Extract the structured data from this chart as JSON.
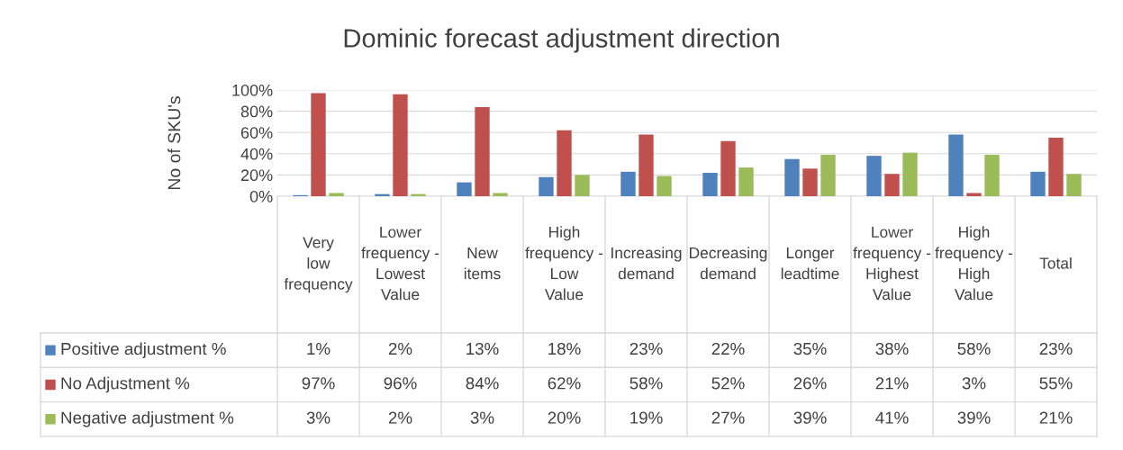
{
  "chart_data": {
    "type": "bar",
    "title": "Dominic forecast adjustment direction",
    "ylabel": "No of SKU's",
    "categories": [
      "Very low frequency",
      "Lower frequency - Lowest Value",
      "New items",
      "High frequency - Low Value",
      "Increasing demand",
      "Decreasing demand",
      "Longer leadtime",
      "Lower frequency - Highest Value",
      "High frequency - High Value",
      "Total"
    ],
    "series": [
      {
        "name": "Positive adjustment %",
        "color": "#4f81bd",
        "values": [
          1,
          2,
          13,
          18,
          23,
          22,
          35,
          38,
          58,
          23
        ],
        "value_labels": [
          "1%",
          "2%",
          "13%",
          "18%",
          "23%",
          "22%",
          "35%",
          "38%",
          "58%",
          "23%"
        ]
      },
      {
        "name": "No Adjustment %",
        "color": "#c0504d",
        "values": [
          97,
          96,
          84,
          62,
          58,
          52,
          26,
          21,
          3,
          55
        ],
        "value_labels": [
          "97%",
          "96%",
          "84%",
          "62%",
          "58%",
          "52%",
          "26%",
          "21%",
          "3%",
          "55%"
        ]
      },
      {
        "name": "Negative adjustment %",
        "color": "#9bbb59",
        "values": [
          3,
          2,
          3,
          20,
          19,
          27,
          39,
          41,
          39,
          21
        ],
        "value_labels": [
          "3%",
          "2%",
          "3%",
          "20%",
          "19%",
          "27%",
          "39%",
          "41%",
          "39%",
          "21%"
        ]
      }
    ],
    "ylim": [
      0,
      100
    ],
    "yticks": [
      {
        "value": 0,
        "label": "0%"
      },
      {
        "value": 20,
        "label": "20%"
      },
      {
        "value": 40,
        "label": "40%"
      },
      {
        "value": 60,
        "label": "60%"
      },
      {
        "value": 80,
        "label": "80%"
      },
      {
        "value": 100,
        "label": "100%"
      }
    ],
    "grid": "y",
    "legend": "bottom"
  }
}
